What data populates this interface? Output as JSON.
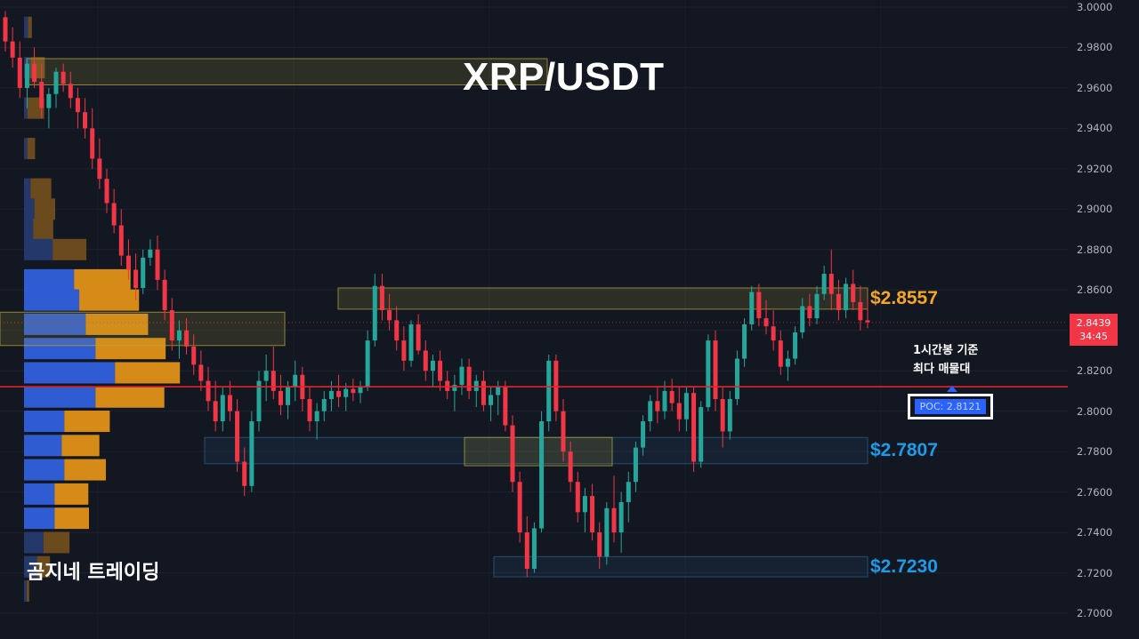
{
  "header": {
    "title": "XRP/USDT"
  },
  "watermark": {
    "brand": "곰지네 트레이딩"
  },
  "annotation": {
    "line1": "1시간봉 기준",
    "line2": "최다 매물대"
  },
  "poc": {
    "label": "POC: 2.8121",
    "color": "#2962ff"
  },
  "levels": [
    {
      "label": "$2.8557",
      "color": "#f5a623"
    },
    {
      "label": "$2.7807",
      "color": "#1e9be8"
    },
    {
      "label": "$2.7230",
      "color": "#1e9be8"
    }
  ],
  "current_price": {
    "price": "2.8439",
    "countdown": "34:45"
  },
  "colors": {
    "up": "#26a69a",
    "down": "#f23645",
    "poc_line": "#e0262a",
    "background": "#131722"
  },
  "chart_data": {
    "type": "candlestick",
    "symbol": "XRP/USDT",
    "timeframe": "1h",
    "ylim": [
      2.7,
      3.0
    ],
    "y_ticks": [
      "3.0000",
      "2.9800",
      "2.9600",
      "2.9400",
      "2.9200",
      "2.9000",
      "2.8800",
      "2.8600",
      "2.8400",
      "2.8200",
      "2.8000",
      "2.7800",
      "2.7600",
      "2.7400",
      "2.7200",
      "2.7000"
    ],
    "poc": 2.8121,
    "current_price": 2.8439,
    "levels": [
      2.8557,
      2.7807,
      2.723
    ],
    "zones": [
      {
        "from": 2.9615,
        "to": 2.9745,
        "color": "#b8a63a"
      },
      {
        "from": 2.8505,
        "to": 2.861,
        "color": "#b8a63a"
      },
      {
        "from": 2.774,
        "to": 2.787,
        "color": "#2a5f86"
      },
      {
        "from": 2.773,
        "to": 2.787,
        "color": "#b8a63a"
      },
      {
        "from": 2.718,
        "to": 2.728,
        "color": "#2a5f86"
      },
      {
        "from": 2.8325,
        "to": 2.849,
        "color": "#b8a63a"
      }
    ],
    "volume_profile": [
      {
        "price": 2.99,
        "buy": 0.6,
        "sell": 0.6
      },
      {
        "price": 2.97,
        "buy": 1.0,
        "sell": 2.2
      },
      {
        "price": 2.95,
        "buy": 0.5,
        "sell": 2.6
      },
      {
        "price": 2.93,
        "buy": 0.5,
        "sell": 1.2
      },
      {
        "price": 2.91,
        "buy": 1.0,
        "sell": 3.2
      },
      {
        "price": 2.9,
        "buy": 1.6,
        "sell": 3.2
      },
      {
        "price": 2.89,
        "buy": 1.4,
        "sell": 3.1
      },
      {
        "price": 2.88,
        "buy": 4.4,
        "sell": 5.2
      },
      {
        "price": 2.865,
        "buy": 7.7,
        "sell": 8.7
      },
      {
        "price": 2.855,
        "buy": 8.5,
        "sell": 9.2
      },
      {
        "price": 2.843,
        "buy": 9.5,
        "sell": 9.6
      },
      {
        "price": 2.831,
        "buy": 11.0,
        "sell": 10.8
      },
      {
        "price": 2.819,
        "buy": 14.0,
        "sell": 10.0
      },
      {
        "price": 2.807,
        "buy": 11.0,
        "sell": 10.6
      },
      {
        "price": 2.795,
        "buy": 6.2,
        "sell": 7.0
      },
      {
        "price": 2.783,
        "buy": 5.8,
        "sell": 5.8
      },
      {
        "price": 2.771,
        "buy": 6.2,
        "sell": 6.4
      },
      {
        "price": 2.759,
        "buy": 4.7,
        "sell": 5.2
      },
      {
        "price": 2.747,
        "buy": 4.7,
        "sell": 5.3
      },
      {
        "price": 2.735,
        "buy": 3.0,
        "sell": 4.0
      },
      {
        "price": 2.723,
        "buy": 2.0,
        "sell": 2.0
      },
      {
        "price": 2.711,
        "buy": 0.4,
        "sell": 0.4
      }
    ],
    "candles": [
      [
        2.995,
        2.998,
        2.978,
        2.983
      ],
      [
        2.983,
        2.99,
        2.97,
        2.975
      ],
      [
        2.975,
        2.983,
        2.955,
        2.96
      ],
      [
        2.96,
        2.975,
        2.95,
        2.972
      ],
      [
        2.972,
        2.98,
        2.96,
        2.963
      ],
      [
        2.963,
        2.972,
        2.945,
        2.95
      ],
      [
        2.95,
        2.96,
        2.94,
        2.957
      ],
      [
        2.957,
        2.97,
        2.95,
        2.968
      ],
      [
        2.968,
        2.972,
        2.958,
        2.962
      ],
      [
        2.962,
        2.968,
        2.95,
        2.955
      ],
      [
        2.955,
        2.96,
        2.94,
        2.948
      ],
      [
        2.948,
        2.955,
        2.935,
        2.94
      ],
      [
        2.94,
        2.95,
        2.92,
        2.925
      ],
      [
        2.925,
        2.935,
        2.91,
        2.915
      ],
      [
        2.915,
        2.92,
        2.898,
        2.903
      ],
      [
        2.903,
        2.91,
        2.888,
        2.892
      ],
      [
        2.892,
        2.9,
        2.872,
        2.877
      ],
      [
        2.877,
        2.885,
        2.865,
        2.87
      ],
      [
        2.87,
        2.878,
        2.855,
        2.861
      ],
      [
        2.861,
        2.88,
        2.858,
        2.876
      ],
      [
        2.876,
        2.885,
        2.872,
        2.88
      ],
      [
        2.88,
        2.887,
        2.86,
        2.865
      ],
      [
        2.865,
        2.87,
        2.845,
        2.85
      ],
      [
        2.85,
        2.856,
        2.83,
        2.835
      ],
      [
        2.835,
        2.845,
        2.826,
        2.84
      ],
      [
        2.84,
        2.846,
        2.828,
        2.832
      ],
      [
        2.832,
        2.838,
        2.818,
        2.823
      ],
      [
        2.823,
        2.83,
        2.81,
        2.815
      ],
      [
        2.815,
        2.822,
        2.8,
        2.805
      ],
      [
        2.805,
        2.815,
        2.79,
        2.795
      ],
      [
        2.795,
        2.812,
        2.79,
        2.808
      ],
      [
        2.808,
        2.815,
        2.795,
        2.8
      ],
      [
        2.8,
        2.806,
        2.77,
        2.775
      ],
      [
        2.775,
        2.782,
        2.758,
        2.763
      ],
      [
        2.763,
        2.8,
        2.76,
        2.795
      ],
      [
        2.795,
        2.82,
        2.79,
        2.815
      ],
      [
        2.815,
        2.828,
        2.805,
        2.82
      ],
      [
        2.82,
        2.832,
        2.806,
        2.81
      ],
      [
        2.81,
        2.818,
        2.798,
        2.803
      ],
      [
        2.803,
        2.815,
        2.796,
        2.812
      ],
      [
        2.812,
        2.825,
        2.805,
        2.818
      ],
      [
        2.818,
        2.822,
        2.8,
        2.806
      ],
      [
        2.806,
        2.812,
        2.79,
        2.795
      ],
      [
        2.795,
        2.804,
        2.786,
        2.8
      ],
      [
        2.8,
        2.81,
        2.795,
        2.806
      ],
      [
        2.806,
        2.815,
        2.8,
        2.81
      ],
      [
        2.81,
        2.818,
        2.802,
        2.807
      ],
      [
        2.807,
        2.814,
        2.8,
        2.811
      ],
      [
        2.811,
        2.816,
        2.805,
        2.809
      ],
      [
        2.809,
        2.815,
        2.804,
        2.812
      ],
      [
        2.812,
        2.84,
        2.81,
        2.835
      ],
      [
        2.835,
        2.868,
        2.832,
        2.862
      ],
      [
        2.862,
        2.868,
        2.845,
        2.85
      ],
      [
        2.85,
        2.858,
        2.84,
        2.845
      ],
      [
        2.845,
        2.852,
        2.83,
        2.835
      ],
      [
        2.835,
        2.842,
        2.82,
        2.825
      ],
      [
        2.825,
        2.845,
        2.822,
        2.843
      ],
      [
        2.843,
        2.848,
        2.828,
        2.83
      ],
      [
        2.83,
        2.835,
        2.815,
        2.82
      ],
      [
        2.82,
        2.828,
        2.812,
        2.825
      ],
      [
        2.825,
        2.83,
        2.81,
        2.815
      ],
      [
        2.815,
        2.82,
        2.806,
        2.81
      ],
      [
        2.81,
        2.818,
        2.8,
        2.813
      ],
      [
        2.813,
        2.826,
        2.808,
        2.822
      ],
      [
        2.822,
        2.826,
        2.806,
        2.81
      ],
      [
        2.81,
        2.818,
        2.802,
        2.815
      ],
      [
        2.815,
        2.82,
        2.8,
        2.803
      ],
      [
        2.803,
        2.812,
        2.795,
        2.808
      ],
      [
        2.808,
        2.815,
        2.798,
        2.812
      ],
      [
        2.812,
        2.815,
        2.79,
        2.793
      ],
      [
        2.793,
        2.798,
        2.76,
        2.765
      ],
      [
        2.765,
        2.77,
        2.735,
        2.74
      ],
      [
        2.74,
        2.748,
        2.718,
        2.722
      ],
      [
        2.722,
        2.745,
        2.72,
        2.742
      ],
      [
        2.742,
        2.8,
        2.74,
        2.795
      ],
      [
        2.795,
        2.828,
        2.79,
        2.825
      ],
      [
        2.825,
        2.828,
        2.795,
        2.8
      ],
      [
        2.8,
        2.806,
        2.775,
        2.78
      ],
      [
        2.78,
        2.785,
        2.76,
        2.765
      ],
      [
        2.765,
        2.77,
        2.745,
        2.75
      ],
      [
        2.75,
        2.762,
        2.74,
        2.758
      ],
      [
        2.758,
        2.764,
        2.736,
        2.74
      ],
      [
        2.74,
        2.745,
        2.722,
        2.728
      ],
      [
        2.728,
        2.755,
        2.724,
        2.752
      ],
      [
        2.752,
        2.768,
        2.735,
        2.74
      ],
      [
        2.74,
        2.76,
        2.73,
        2.755
      ],
      [
        2.755,
        2.77,
        2.745,
        2.765
      ],
      [
        2.765,
        2.785,
        2.76,
        2.782
      ],
      [
        2.782,
        2.798,
        2.778,
        2.795
      ],
      [
        2.795,
        2.808,
        2.79,
        2.805
      ],
      [
        2.805,
        2.812,
        2.794,
        2.8
      ],
      [
        2.8,
        2.815,
        2.796,
        2.81
      ],
      [
        2.81,
        2.816,
        2.8,
        2.804
      ],
      [
        2.804,
        2.812,
        2.79,
        2.796
      ],
      [
        2.796,
        2.812,
        2.79,
        2.809
      ],
      [
        2.809,
        2.812,
        2.77,
        2.775
      ],
      [
        2.775,
        2.805,
        2.772,
        2.802
      ],
      [
        2.802,
        2.838,
        2.8,
        2.835
      ],
      [
        2.835,
        2.84,
        2.8,
        2.806
      ],
      [
        2.806,
        2.812,
        2.782,
        2.79
      ],
      [
        2.79,
        2.81,
        2.786,
        2.806
      ],
      [
        2.806,
        2.83,
        2.803,
        2.826
      ],
      [
        2.826,
        2.846,
        2.822,
        2.843
      ],
      [
        2.843,
        2.862,
        2.84,
        2.859
      ],
      [
        2.859,
        2.863,
        2.842,
        2.846
      ],
      [
        2.846,
        2.855,
        2.838,
        2.842
      ],
      [
        2.842,
        2.85,
        2.83,
        2.835
      ],
      [
        2.835,
        2.84,
        2.818,
        2.822
      ],
      [
        2.822,
        2.83,
        2.815,
        2.826
      ],
      [
        2.826,
        2.842,
        2.823,
        2.839
      ],
      [
        2.839,
        2.856,
        2.836,
        2.852
      ],
      [
        2.852,
        2.858,
        2.842,
        2.846
      ],
      [
        2.846,
        2.862,
        2.843,
        2.858
      ],
      [
        2.858,
        2.872,
        2.855,
        2.868
      ],
      [
        2.868,
        2.88,
        2.85,
        2.858
      ],
      [
        2.858,
        2.865,
        2.845,
        2.85
      ],
      [
        2.85,
        2.866,
        2.846,
        2.863
      ],
      [
        2.863,
        2.87,
        2.85,
        2.854
      ],
      [
        2.854,
        2.862,
        2.84,
        2.845
      ],
      [
        2.845,
        2.856,
        2.841,
        2.844
      ]
    ]
  }
}
